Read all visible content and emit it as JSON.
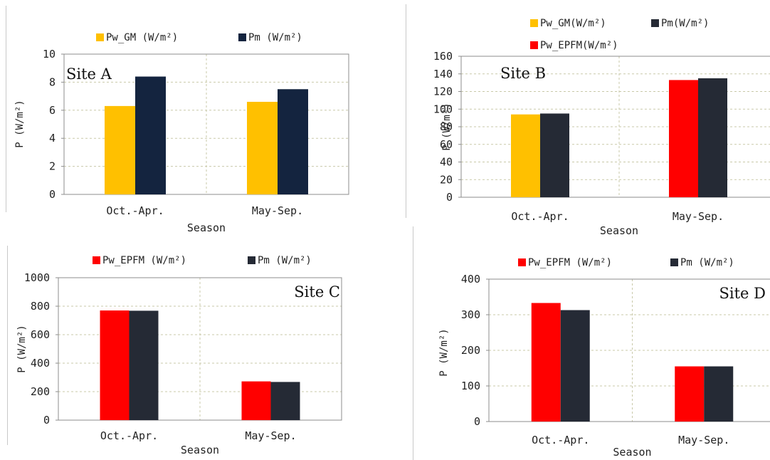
{
  "colors": {
    "gold": "#FFC000",
    "navy": "#14243F",
    "red": "#FF0000",
    "charcoal": "#252A35",
    "grid": "#C9C9A9",
    "axis": "#8C8C8C"
  },
  "chart_data": [
    {
      "type": "bar",
      "site_label": "Site A",
      "categories": [
        "Oct.-Apr.",
        "May-Sep."
      ],
      "series": [
        {
          "name": "Pw_GM (W/m²)",
          "values": [
            6.3,
            6.6
          ],
          "color": "#FFC000"
        },
        {
          "name": "Pm (W/m²)",
          "values": [
            8.4,
            7.5
          ],
          "color": "#14243F"
        }
      ],
      "xlabel": "Season",
      "ylabel": "P (W/m²)",
      "ylim": [
        0,
        10
      ],
      "yticks": [
        0,
        2,
        4,
        6,
        8,
        10
      ],
      "legend_position": "top"
    },
    {
      "type": "bar",
      "site_label": "Site B",
      "categories": [
        "Oct.-Apr.",
        "May-Sep."
      ],
      "series": [
        {
          "name": "Pw_GM(W/m²)",
          "values": [
            94,
            null
          ],
          "color": "#FFC000"
        },
        {
          "name": "Pw_EPFM(W/m²)",
          "values": [
            null,
            133
          ],
          "color": "#FF0000"
        },
        {
          "name": "Pm(W/m²)",
          "values": [
            95,
            135
          ],
          "color": "#252A35"
        }
      ],
      "xlabel": "Season",
      "ylabel": "P (W/m²)",
      "ylim": [
        0,
        160
      ],
      "yticks": [
        0,
        20,
        40,
        60,
        80,
        100,
        120,
        140,
        160
      ],
      "legend_position": "top"
    },
    {
      "type": "bar",
      "site_label": "Site C",
      "categories": [
        "Oct.-Apr.",
        "May-Sep."
      ],
      "series": [
        {
          "name": "Pw_EPFM (W/m²)",
          "values": [
            770,
            272
          ],
          "color": "#FF0000"
        },
        {
          "name": "Pm (W/m²)",
          "values": [
            768,
            268
          ],
          "color": "#252A35"
        }
      ],
      "xlabel": "Season",
      "ylabel": "P (W/m²)",
      "ylim": [
        0,
        1000
      ],
      "yticks": [
        0,
        200,
        400,
        600,
        800,
        1000
      ],
      "legend_position": "top"
    },
    {
      "type": "bar",
      "site_label": "Site D",
      "categories": [
        "Oct.-Apr.",
        "May-Sep."
      ],
      "series": [
        {
          "name": "Pw_EPFM (W/m²)",
          "values": [
            333,
            155
          ],
          "color": "#FF0000"
        },
        {
          "name": "Pm (W/m²)",
          "values": [
            313,
            155
          ],
          "color": "#252A35"
        }
      ],
      "xlabel": "Season",
      "ylabel": "P (W/m²)",
      "ylim": [
        0,
        400
      ],
      "yticks": [
        0,
        100,
        200,
        300,
        400
      ],
      "legend_position": "top"
    }
  ]
}
